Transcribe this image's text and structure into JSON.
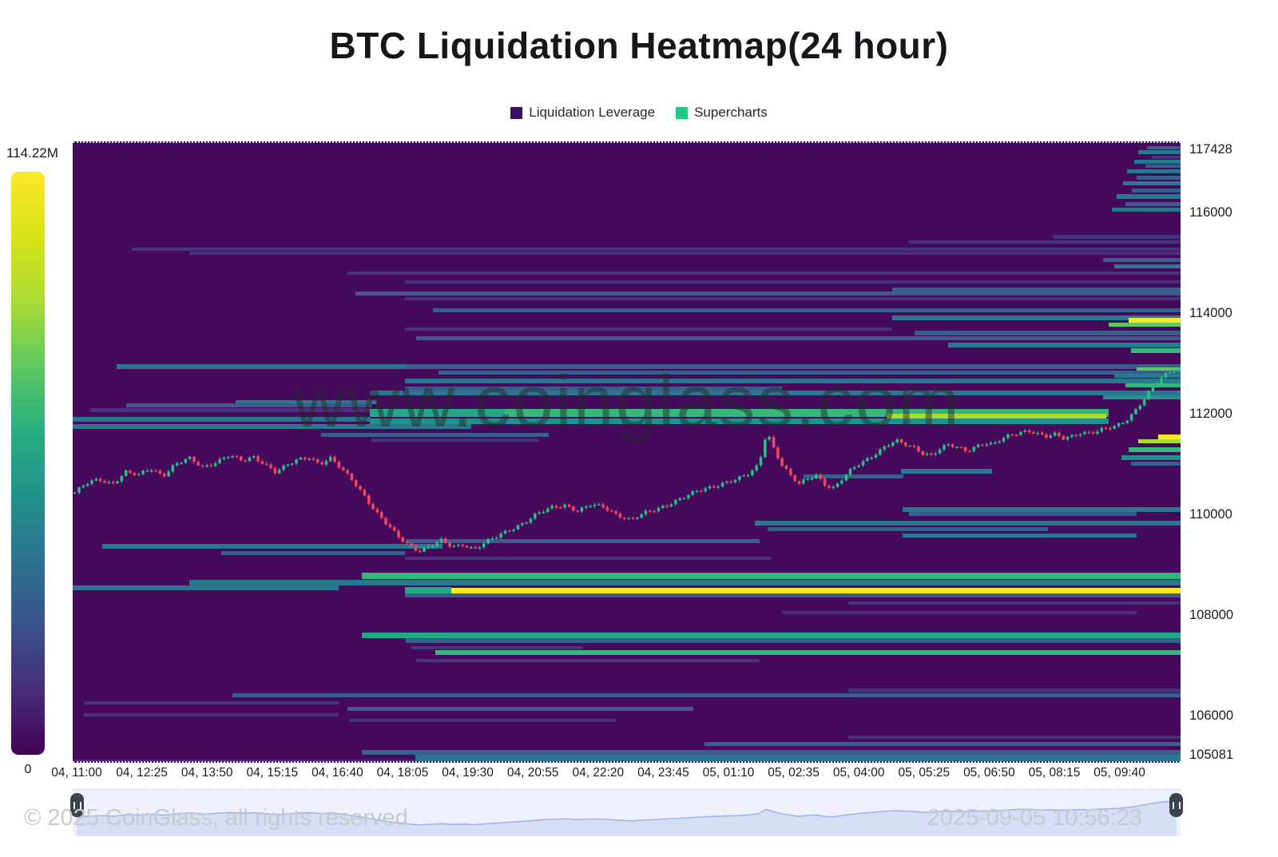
{
  "title": "BTC Liquidation Heatmap(24 hour)",
  "legend": [
    {
      "label": "Liquidation Leverage",
      "color": "#3b1162"
    },
    {
      "label": "Supercharts",
      "color": "#1ec981"
    }
  ],
  "colorbar": {
    "max_label": "114.22M",
    "min_label": "0",
    "gradient": [
      "#fde725",
      "#d8e219",
      "#aadc32",
      "#5ec962",
      "#28ae80",
      "#21918c",
      "#2c728e",
      "#3b528b",
      "#472d7b",
      "#440154"
    ]
  },
  "watermark": "www.coinglass.com",
  "footer": {
    "copyright": "© 2025 CoinGlass, all rights reserved",
    "timestamp": "2025-09-05 10:56:23"
  },
  "chart_data": {
    "type": "heatmap",
    "title": "BTC Liquidation Heatmap(24 hour)",
    "legend": [
      "Liquidation Leverage",
      "Supercharts"
    ],
    "price_axis": {
      "min": 105081,
      "max": 117428,
      "ticks": [
        117428,
        116000,
        114000,
        112000,
        110000,
        108000,
        106000,
        105081
      ]
    },
    "time_ticks": [
      "04, 11:00",
      "04, 12:25",
      "04, 13:50",
      "04, 15:15",
      "04, 16:40",
      "04, 18:05",
      "04, 19:30",
      "04, 20:55",
      "04, 22:20",
      "04, 23:45",
      "05, 01:10",
      "05, 02:35",
      "05, 04:00",
      "05, 05:25",
      "05, 06:50",
      "05, 08:15",
      "05, 09:40"
    ],
    "intensity_max_label": "114.22M",
    "palette": {
      "f": "#45337e",
      "b": "#3a5e8c",
      "t": "#2a788e",
      "T": "#21918c",
      "g": "#22a884",
      "G": "#35b779",
      "l": "#5ec962",
      "Y": "#aadc32",
      "y": "#fde725"
    },
    "background": "#460a5d",
    "bands": [
      [
        117340,
        0.97,
        1,
        "b",
        4
      ],
      [
        117240,
        0.962,
        1,
        "t",
        5
      ],
      [
        117150,
        0.974,
        1,
        "f",
        4
      ],
      [
        117060,
        0.958,
        1,
        "t",
        5
      ],
      [
        116960,
        0.968,
        1,
        "b",
        4
      ],
      [
        116860,
        0.952,
        1,
        "t",
        5
      ],
      [
        116740,
        0.96,
        1,
        "b",
        5
      ],
      [
        116620,
        0.948,
        1,
        "t",
        5
      ],
      [
        116480,
        0.956,
        1,
        "b",
        5
      ],
      [
        116360,
        0.942,
        1,
        "t",
        6
      ],
      [
        116220,
        0.95,
        1,
        "b",
        5
      ],
      [
        116100,
        0.938,
        1,
        "t",
        5
      ],
      [
        115560,
        0.885,
        1,
        "f",
        5
      ],
      [
        115460,
        0.755,
        1,
        "f",
        4
      ],
      [
        115320,
        0.053,
        1,
        "f",
        4
      ],
      [
        115230,
        0.105,
        1,
        "f",
        4
      ],
      [
        115100,
        0.93,
        1,
        "b",
        5
      ],
      [
        114980,
        0.94,
        1,
        "t",
        5
      ],
      [
        114840,
        0.248,
        1,
        "f",
        4
      ],
      [
        114660,
        0.3,
        1,
        "f",
        4
      ],
      [
        114520,
        0.74,
        1,
        "b",
        5
      ],
      [
        114440,
        0.255,
        1,
        "b",
        5
      ],
      [
        114330,
        0.3,
        1,
        "f",
        4
      ],
      [
        114100,
        0.325,
        1,
        "b",
        5
      ],
      [
        113960,
        0.74,
        1,
        "t",
        6
      ],
      [
        113890,
        0.953,
        1,
        "y",
        7
      ],
      [
        113810,
        0.935,
        1,
        "l",
        5
      ],
      [
        113730,
        0.3,
        0.74,
        "f",
        4
      ],
      [
        113650,
        0.76,
        1,
        "b",
        6
      ],
      [
        113540,
        0.31,
        1,
        "b",
        5
      ],
      [
        113410,
        0.79,
        1,
        "t",
        6
      ],
      [
        113300,
        0.955,
        1,
        "G",
        6
      ],
      [
        112990,
        0.04,
        0.3,
        "t",
        6
      ],
      [
        112990,
        0.3,
        1,
        "b",
        6
      ],
      [
        112930,
        0.96,
        1,
        "l",
        5
      ],
      [
        112860,
        0.33,
        1,
        "b",
        5
      ],
      [
        112800,
        0.94,
        1,
        "t",
        5
      ],
      [
        112700,
        0.3,
        1,
        "t",
        6
      ],
      [
        112610,
        0.95,
        1,
        "G",
        5
      ],
      [
        112550,
        0.3,
        0.64,
        "b",
        5
      ],
      [
        112460,
        0.268,
        1,
        "t",
        6
      ],
      [
        112380,
        0.93,
        1,
        "T",
        5
      ],
      [
        112280,
        0.147,
        0.275,
        "t",
        5
      ],
      [
        112210,
        0.048,
        0.27,
        "b",
        5
      ],
      [
        112120,
        0.016,
        0.268,
        "f",
        5
      ],
      [
        112060,
        0.268,
        0.39,
        "g",
        10
      ],
      [
        112060,
        0.39,
        0.935,
        "G",
        10
      ],
      [
        112000,
        0.735,
        0.933,
        "Y",
        6
      ],
      [
        111930,
        0.0,
        0.268,
        "t",
        6
      ],
      [
        111900,
        0.268,
        0.935,
        "T",
        7
      ],
      [
        111800,
        0.0,
        0.36,
        "t",
        6
      ],
      [
        111620,
        0.224,
        0.43,
        "b",
        5
      ],
      [
        111520,
        0.27,
        0.42,
        "f",
        4
      ],
      [
        111580,
        0.98,
        1,
        "y",
        7
      ],
      [
        111500,
        0.962,
        1,
        "Y",
        5
      ],
      [
        111330,
        0.953,
        1,
        "G",
        6
      ],
      [
        111180,
        0.947,
        1,
        "T",
        6
      ],
      [
        111060,
        0.955,
        1,
        "b",
        5
      ],
      [
        110900,
        0.748,
        0.83,
        "t",
        6
      ],
      [
        110800,
        0.66,
        0.75,
        "b",
        5
      ],
      [
        110150,
        0.749,
        1,
        "t",
        6
      ],
      [
        110050,
        0.755,
        0.96,
        "b",
        5
      ],
      [
        109870,
        0.616,
        1,
        "t",
        6
      ],
      [
        109760,
        0.627,
        0.88,
        "b",
        5
      ],
      [
        109620,
        0.749,
        0.96,
        "t",
        5
      ],
      [
        109520,
        0.301,
        0.62,
        "b",
        5
      ],
      [
        109420,
        0.027,
        0.334,
        "t",
        6
      ],
      [
        109280,
        0.134,
        0.3,
        "b",
        5
      ],
      [
        109170,
        0.3,
        0.63,
        "f",
        4
      ],
      [
        108820,
        0.261,
        1,
        "G",
        8
      ],
      [
        108690,
        0.105,
        1,
        "t",
        7
      ],
      [
        108590,
        0.0,
        0.24,
        "t",
        6
      ],
      [
        108540,
        0.3,
        0.342,
        "g",
        8
      ],
      [
        108520,
        0.342,
        1,
        "y",
        8
      ],
      [
        108430,
        0.3,
        1,
        "b",
        5
      ],
      [
        108280,
        0.7,
        1,
        "f",
        4
      ],
      [
        108100,
        0.64,
        0.96,
        "f",
        4
      ],
      [
        107650,
        0.261,
        1,
        "g",
        7
      ],
      [
        107540,
        0.301,
        1,
        "b",
        6
      ],
      [
        107400,
        0.306,
        0.46,
        "f",
        4
      ],
      [
        107300,
        0.327,
        1,
        "G",
        6
      ],
      [
        107150,
        0.31,
        0.62,
        "f",
        4
      ],
      [
        106550,
        0.7,
        1,
        "f",
        5
      ],
      [
        106450,
        0.144,
        1,
        "b",
        5
      ],
      [
        106300,
        0.01,
        0.24,
        "f",
        4
      ],
      [
        106190,
        0.248,
        0.56,
        "b",
        5
      ],
      [
        106060,
        0.01,
        0.24,
        "f",
        4
      ],
      [
        105950,
        0.25,
        0.49,
        "f",
        4
      ],
      [
        105620,
        0.7,
        1,
        "f",
        4
      ],
      [
        105480,
        0.57,
        1,
        "b",
        5
      ],
      [
        105320,
        0.261,
        1,
        "b",
        6
      ],
      [
        105230,
        0.309,
        1,
        "t",
        6
      ],
      [
        105130,
        0.0,
        0.31,
        "f",
        5
      ],
      [
        105130,
        0.31,
        1,
        "t",
        5
      ]
    ],
    "price_path": [
      [
        0.0,
        110480
      ],
      [
        0.01,
        110650
      ],
      [
        0.022,
        110740
      ],
      [
        0.034,
        110660
      ],
      [
        0.046,
        110890
      ],
      [
        0.058,
        110820
      ],
      [
        0.068,
        110960
      ],
      [
        0.08,
        110830
      ],
      [
        0.092,
        111060
      ],
      [
        0.104,
        111150
      ],
      [
        0.116,
        110980
      ],
      [
        0.128,
        111100
      ],
      [
        0.14,
        111220
      ],
      [
        0.152,
        111100
      ],
      [
        0.162,
        111190
      ],
      [
        0.172,
        111060
      ],
      [
        0.182,
        110890
      ],
      [
        0.192,
        111010
      ],
      [
        0.202,
        111130
      ],
      [
        0.212,
        111190
      ],
      [
        0.222,
        111060
      ],
      [
        0.232,
        111160
      ],
      [
        0.242,
        110930
      ],
      [
        0.252,
        110720
      ],
      [
        0.262,
        110440
      ],
      [
        0.272,
        110120
      ],
      [
        0.282,
        109860
      ],
      [
        0.292,
        109620
      ],
      [
        0.302,
        109450
      ],
      [
        0.312,
        109330
      ],
      [
        0.322,
        109410
      ],
      [
        0.332,
        109520
      ],
      [
        0.342,
        109400
      ],
      [
        0.352,
        109460
      ],
      [
        0.362,
        109360
      ],
      [
        0.372,
        109480
      ],
      [
        0.382,
        109600
      ],
      [
        0.395,
        109760
      ],
      [
        0.408,
        109900
      ],
      [
        0.42,
        110060
      ],
      [
        0.432,
        110180
      ],
      [
        0.444,
        110240
      ],
      [
        0.456,
        110120
      ],
      [
        0.468,
        110230
      ],
      [
        0.48,
        110190
      ],
      [
        0.492,
        110040
      ],
      [
        0.504,
        109940
      ],
      [
        0.516,
        110060
      ],
      [
        0.528,
        110160
      ],
      [
        0.54,
        110280
      ],
      [
        0.552,
        110390
      ],
      [
        0.564,
        110500
      ],
      [
        0.576,
        110590
      ],
      [
        0.588,
        110680
      ],
      [
        0.6,
        110740
      ],
      [
        0.612,
        110860
      ],
      [
        0.62,
        111050
      ],
      [
        0.627,
        111720
      ],
      [
        0.633,
        111380
      ],
      [
        0.64,
        111060
      ],
      [
        0.648,
        110820
      ],
      [
        0.656,
        110640
      ],
      [
        0.664,
        110760
      ],
      [
        0.672,
        110840
      ],
      [
        0.68,
        110640
      ],
      [
        0.688,
        110560
      ],
      [
        0.696,
        110760
      ],
      [
        0.704,
        110940
      ],
      [
        0.712,
        111080
      ],
      [
        0.72,
        111180
      ],
      [
        0.728,
        111300
      ],
      [
        0.736,
        111410
      ],
      [
        0.744,
        111500
      ],
      [
        0.752,
        111440
      ],
      [
        0.76,
        111390
      ],
      [
        0.768,
        111280
      ],
      [
        0.776,
        111220
      ],
      [
        0.784,
        111340
      ],
      [
        0.792,
        111420
      ],
      [
        0.8,
        111380
      ],
      [
        0.808,
        111320
      ],
      [
        0.816,
        111400
      ],
      [
        0.824,
        111460
      ],
      [
        0.832,
        111420
      ],
      [
        0.84,
        111540
      ],
      [
        0.848,
        111630
      ],
      [
        0.856,
        111690
      ],
      [
        0.864,
        111720
      ],
      [
        0.872,
        111640
      ],
      [
        0.88,
        111580
      ],
      [
        0.888,
        111630
      ],
      [
        0.896,
        111570
      ],
      [
        0.904,
        111620
      ],
      [
        0.912,
        111680
      ],
      [
        0.92,
        111640
      ],
      [
        0.928,
        111700
      ],
      [
        0.936,
        111760
      ],
      [
        0.944,
        111820
      ],
      [
        0.952,
        111920
      ],
      [
        0.96,
        112080
      ],
      [
        0.968,
        112300
      ],
      [
        0.976,
        112540
      ],
      [
        0.984,
        112760
      ],
      [
        0.992,
        112900
      ],
      [
        1.0,
        112960
      ]
    ],
    "candles": {
      "count": 260,
      "up_color": "#2ebd85",
      "down_color": "#f5465d"
    },
    "navigator": {
      "line_color": "#9db4e4",
      "fill_color": "#d6def6"
    }
  }
}
